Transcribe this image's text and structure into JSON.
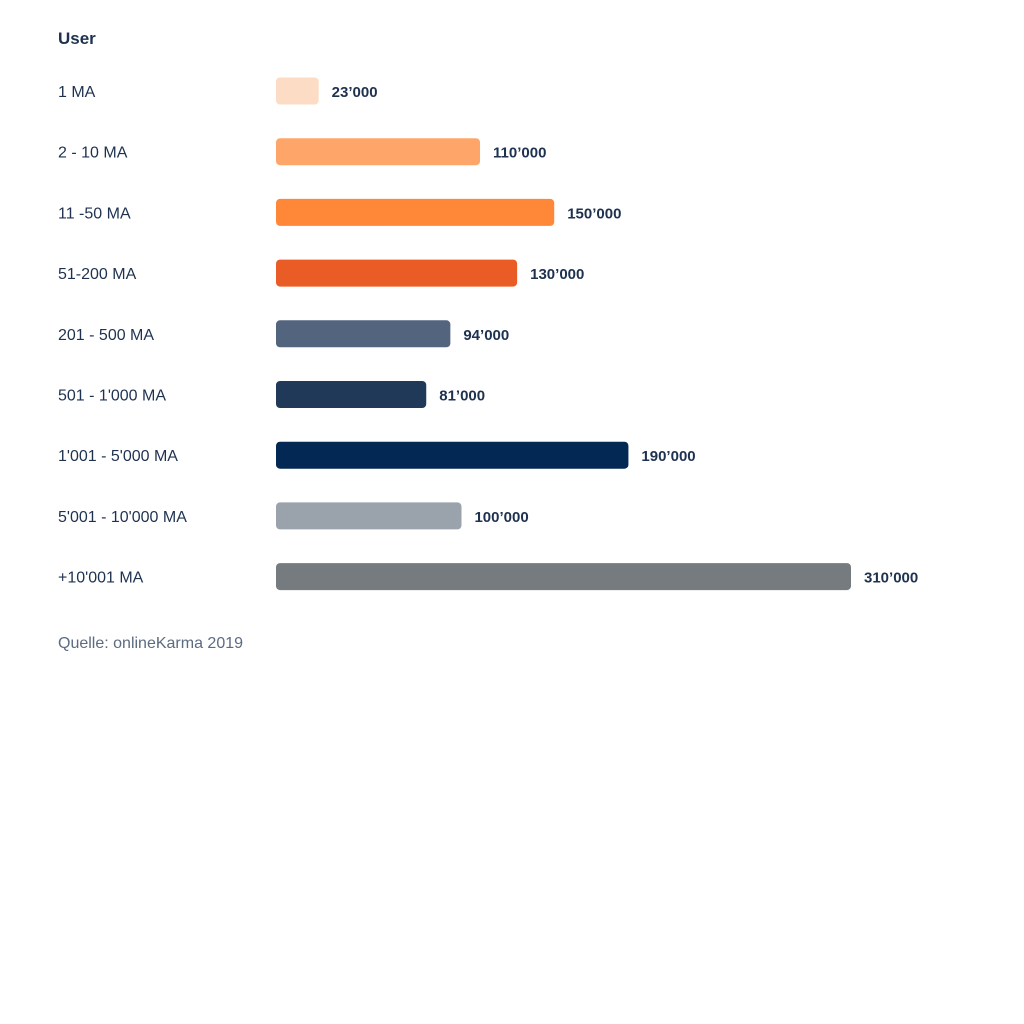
{
  "chart_data": {
    "type": "bar",
    "orientation": "horizontal",
    "title": "User",
    "categories": [
      "1 MA",
      "2 - 10 MA",
      "11 -50 MA",
      "51-200 MA",
      "201 - 500 MA",
      "501 - 1'000 MA",
      "1'001 - 5'000 MA",
      "5'001 - 10'000 MA",
      "+10'001 MA"
    ],
    "values": [
      23000,
      110000,
      150000,
      130000,
      94000,
      81000,
      190000,
      100000,
      310000
    ],
    "value_labels": [
      "23’000",
      "110’000",
      "150’000",
      "130’000",
      "94’000",
      "81’000",
      "190’000",
      "100’000",
      "310’000"
    ],
    "colors": [
      "#fddcc5",
      "#fea66a",
      "#fe8838",
      "#e95c25",
      "#53647f",
      "#213958",
      "#022853",
      "#9aa2ac",
      "#767b7f"
    ],
    "xlim": [
      0,
      310000
    ],
    "grid": false,
    "legend": "none"
  },
  "source": "Quelle: onlineKarma 2019"
}
